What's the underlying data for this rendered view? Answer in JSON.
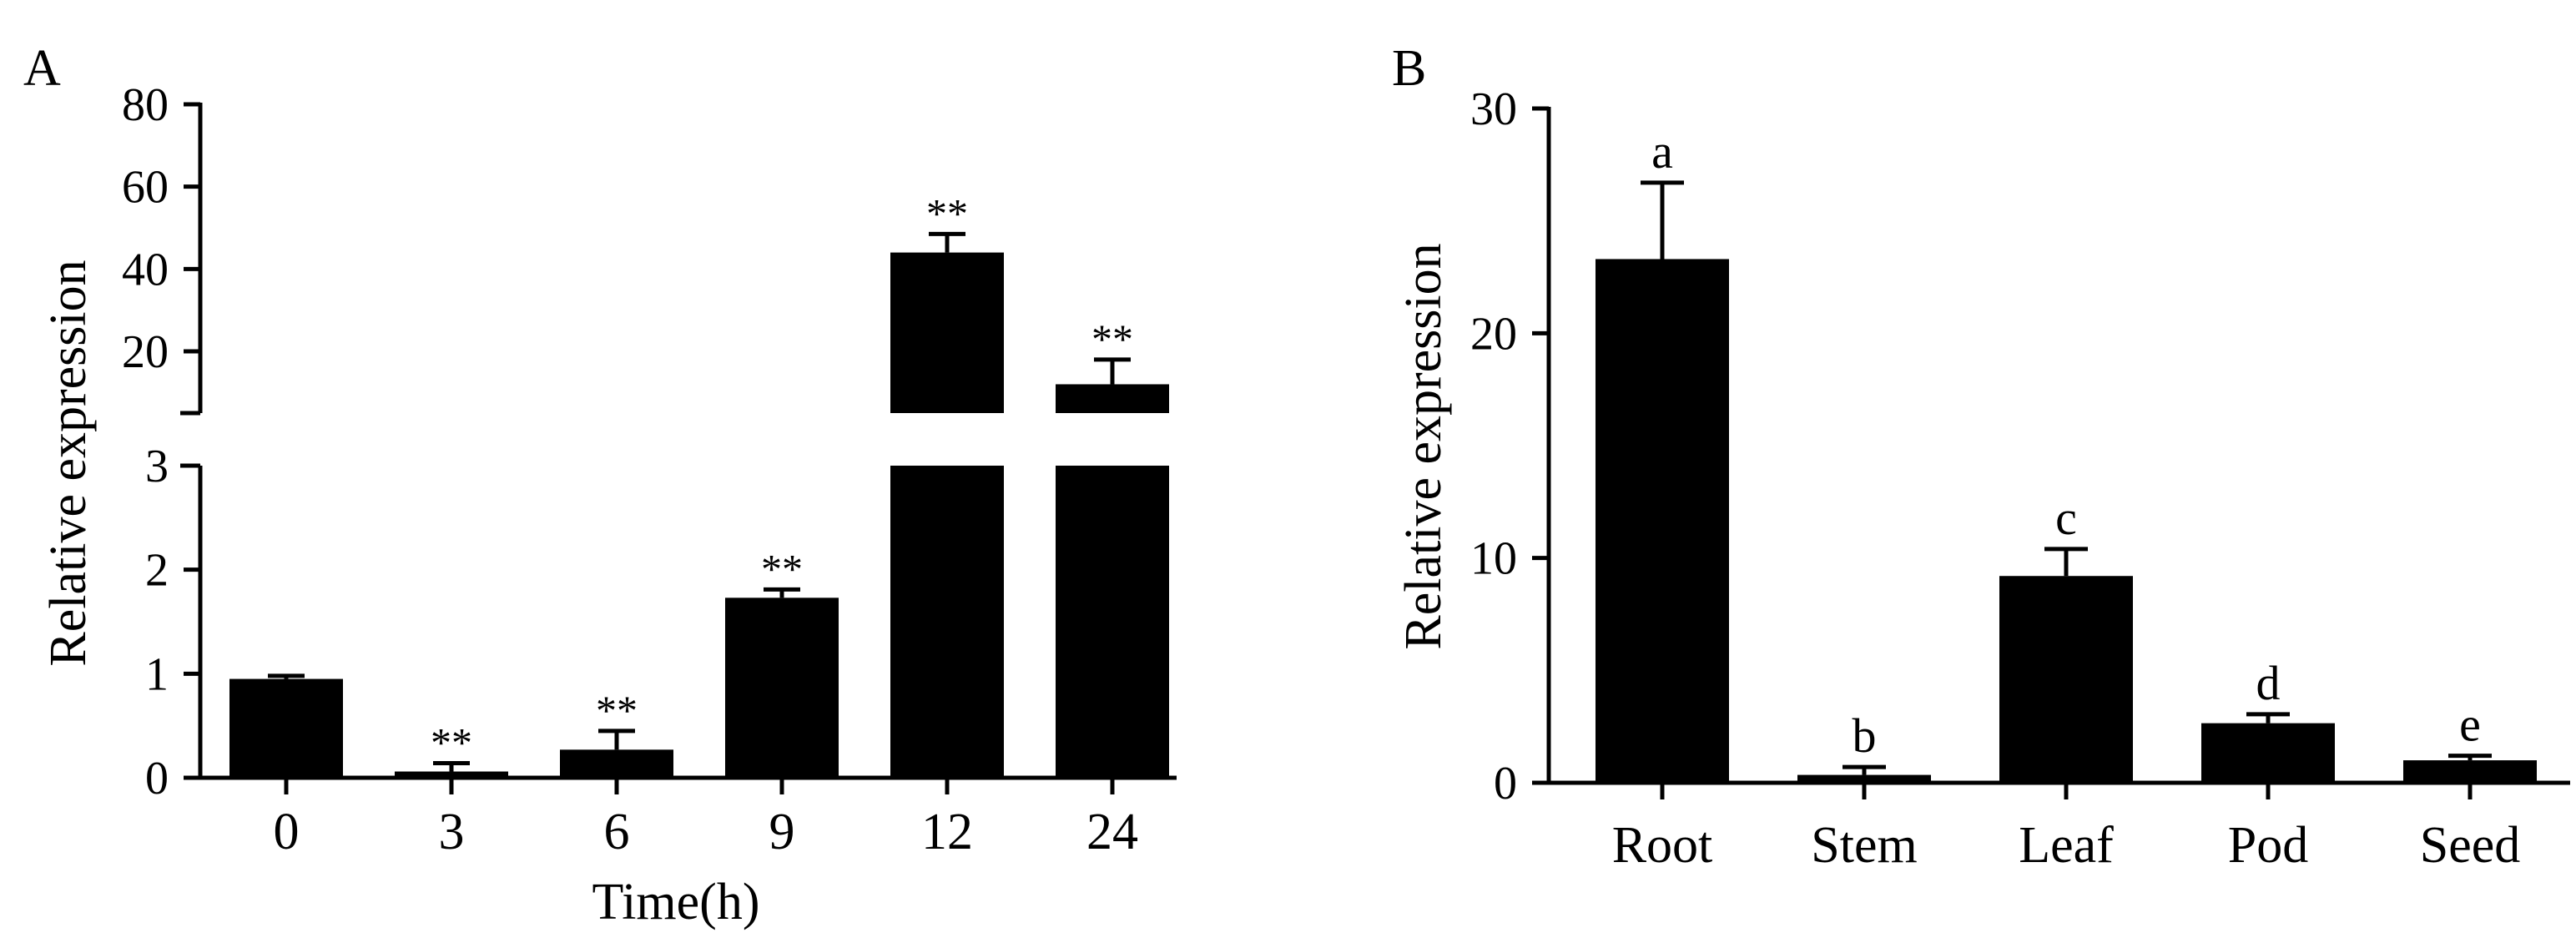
{
  "chart_data": [
    {
      "panel": "A",
      "type": "bar",
      "xlabel": "Time(h)",
      "ylabel": "Relative expression",
      "categories": [
        "0",
        "3",
        "6",
        "9",
        "12",
        "24"
      ],
      "values": [
        0.95,
        0.06,
        0.27,
        1.73,
        44,
        12
      ],
      "errors": [
        0.03,
        0.08,
        0.18,
        0.08,
        4.5,
        6
      ],
      "significance": [
        "",
        "**",
        "**",
        "**",
        "**",
        "**"
      ],
      "y_axis_break": true,
      "ylim_lower": [
        0,
        3
      ],
      "ylim_upper": [
        5,
        80
      ],
      "yticks_lower": [
        "0",
        "1",
        "2",
        "3"
      ],
      "yticks_upper": [
        "20",
        "40",
        "60",
        "80"
      ],
      "grid": false
    },
    {
      "panel": "B",
      "type": "bar",
      "xlabel": "",
      "ylabel": "Relative expression",
      "categories": [
        "Root",
        "Stem",
        "Leaf",
        "Pod",
        "Seed"
      ],
      "values": [
        23.3,
        0.35,
        9.2,
        2.65,
        1.0
      ],
      "errors": [
        3.4,
        0.35,
        1.2,
        0.4,
        0.2
      ],
      "significance": [
        "a",
        "b",
        "c",
        "d",
        "e"
      ],
      "ylim": [
        0,
        30
      ],
      "yticks": [
        "0",
        "10",
        "20",
        "30"
      ],
      "grid": false
    }
  ]
}
